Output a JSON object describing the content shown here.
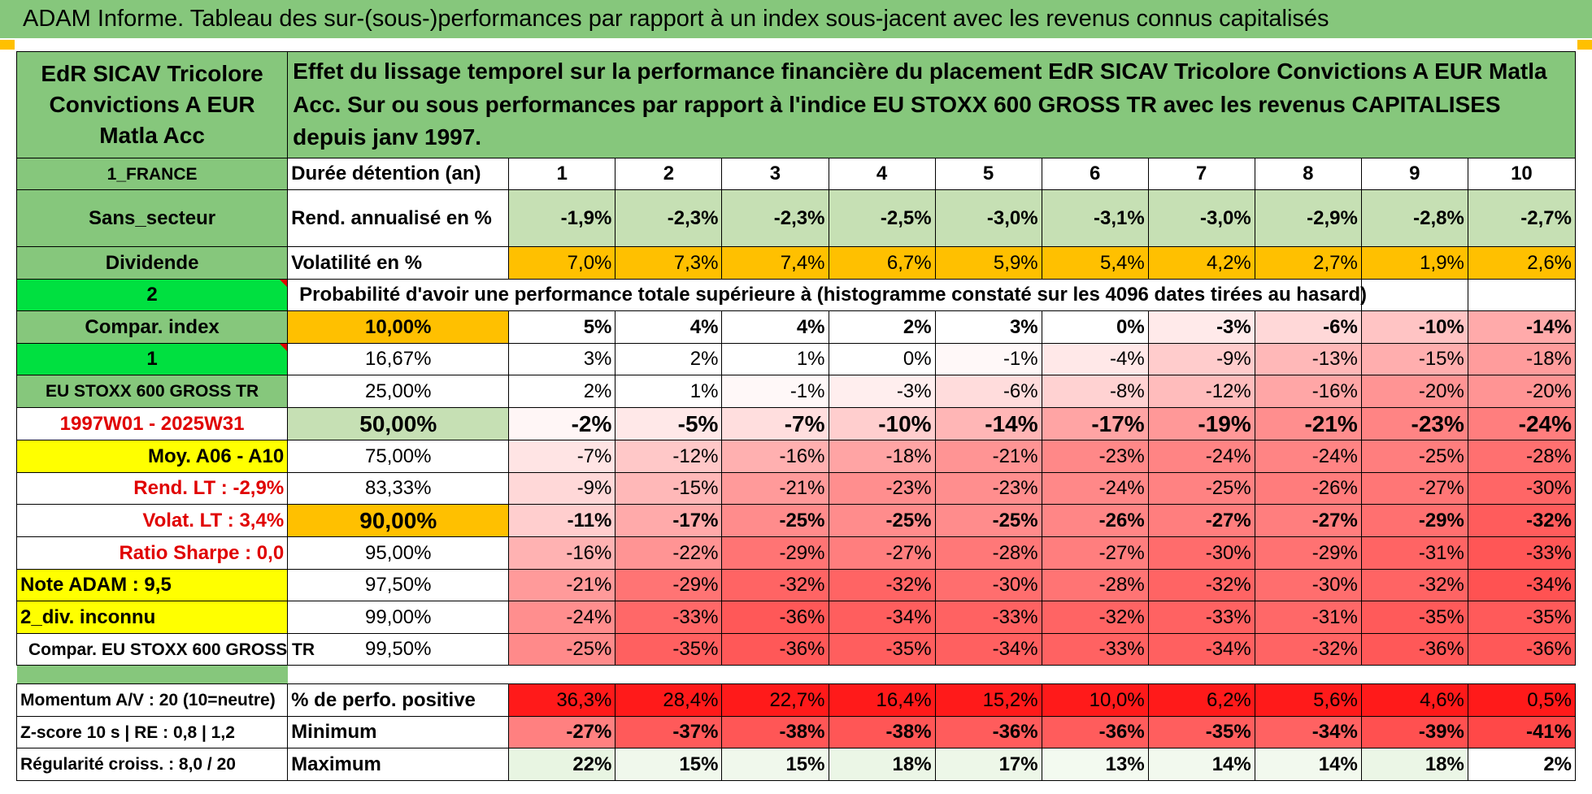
{
  "report_title": "ADAM Informe. Tableau des sur-(sous-)performances par rapport à un index sous-jacent avec les revenus connus capitalisés",
  "fund_name": "EdR SICAV Tricolore Convictions A EUR Matla Acc",
  "description": "Effet du lissage temporel sur la performance financière du placement EdR SICAV Tricolore Convictions A EUR Matla Acc. Sur ou sous performances par rapport à l'indice EU STOXX 600 GROSS TR avec les revenus CAPITALISES depuis janv 1997.",
  "side": {
    "country": "1_FRANCE",
    "sector": "Sans_secteur",
    "dividend": "Dividende",
    "value_2": "2",
    "compar_index": "Compar. index",
    "value_1": "1",
    "index_name": "EU STOXX 600 GROSS TR",
    "period": "1997W01 - 2025W31",
    "moy": "Moy. A06 - A10",
    "rend_lt": "Rend. LT :   -2,9%",
    "volat_lt": "Volat. LT :   3,4%",
    "sharpe": "Ratio Sharpe :   0,0",
    "note": "Note ADAM : 9,5",
    "div_inconnu": "2_div. inconnu",
    "compar_full": "Compar. EU STOXX 600 GROSS TR",
    "momentum": "Momentum A/V : 20 (10=neutre)",
    "zscore": "Z-score 10 s | RE : 0,8 | 1,2",
    "regularite": "Régularité croiss. : 8,0 / 20"
  },
  "headers": {
    "duree": "Durée détention (an)",
    "years": [
      "1",
      "2",
      "3",
      "4",
      "5",
      "6",
      "7",
      "8",
      "9",
      "10"
    ],
    "rend_label": "Rend. annualisé en %",
    "rend": [
      "-1,9%",
      "-2,3%",
      "-2,3%",
      "-2,5%",
      "-3,0%",
      "-3,1%",
      "-3,0%",
      "-2,9%",
      "-2,8%",
      "-2,7%"
    ],
    "vol_label": "Volatilité en %",
    "vol": [
      "7,0%",
      "7,3%",
      "7,4%",
      "6,7%",
      "5,9%",
      "5,4%",
      "4,2%",
      "2,7%",
      "1,9%",
      "2,6%"
    ],
    "proba_label": "Probabilité d'avoir une performance totale supérieure à (histogramme constaté sur les 4096 dates tirées au hasard)"
  },
  "quantiles": [
    {
      "p": "10,00%",
      "values": [
        "5%",
        "4%",
        "4%",
        "2%",
        "3%",
        "0%",
        "-3%",
        "-6%",
        "-10%",
        "-14%"
      ]
    },
    {
      "p": "16,67%",
      "values": [
        "3%",
        "2%",
        "1%",
        "0%",
        "-1%",
        "-4%",
        "-9%",
        "-13%",
        "-15%",
        "-18%"
      ]
    },
    {
      "p": "25,00%",
      "values": [
        "2%",
        "1%",
        "-1%",
        "-3%",
        "-6%",
        "-8%",
        "-12%",
        "-16%",
        "-20%",
        "-20%"
      ]
    },
    {
      "p": "50,00%",
      "values": [
        "-2%",
        "-5%",
        "-7%",
        "-10%",
        "-14%",
        "-17%",
        "-19%",
        "-21%",
        "-23%",
        "-24%"
      ]
    },
    {
      "p": "75,00%",
      "values": [
        "-7%",
        "-12%",
        "-16%",
        "-18%",
        "-21%",
        "-23%",
        "-24%",
        "-24%",
        "-25%",
        "-28%"
      ]
    },
    {
      "p": "83,33%",
      "values": [
        "-9%",
        "-15%",
        "-21%",
        "-23%",
        "-23%",
        "-24%",
        "-25%",
        "-26%",
        "-27%",
        "-30%"
      ]
    },
    {
      "p": "90,00%",
      "values": [
        "-11%",
        "-17%",
        "-25%",
        "-25%",
        "-25%",
        "-26%",
        "-27%",
        "-27%",
        "-29%",
        "-32%"
      ]
    },
    {
      "p": "95,00%",
      "values": [
        "-16%",
        "-22%",
        "-29%",
        "-27%",
        "-28%",
        "-27%",
        "-30%",
        "-29%",
        "-31%",
        "-33%"
      ]
    },
    {
      "p": "97,50%",
      "values": [
        "-21%",
        "-29%",
        "-32%",
        "-32%",
        "-30%",
        "-28%",
        "-32%",
        "-30%",
        "-32%",
        "-34%"
      ]
    },
    {
      "p": "99,00%",
      "values": [
        "-24%",
        "-33%",
        "-36%",
        "-34%",
        "-33%",
        "-32%",
        "-33%",
        "-31%",
        "-35%",
        "-35%"
      ]
    },
    {
      "p": "99,50%",
      "values": [
        "-25%",
        "-35%",
        "-36%",
        "-35%",
        "-34%",
        "-33%",
        "-34%",
        "-32%",
        "-36%",
        "-36%"
      ]
    }
  ],
  "summary": [
    {
      "label": "% de perfo. positive",
      "values": [
        "36,3%",
        "28,4%",
        "22,7%",
        "16,4%",
        "15,2%",
        "10,0%",
        "6,2%",
        "5,6%",
        "4,6%",
        "0,5%"
      ]
    },
    {
      "label": "Minimum",
      "values": [
        "-27%",
        "-37%",
        "-38%",
        "-38%",
        "-36%",
        "-36%",
        "-35%",
        "-34%",
        "-39%",
        "-41%"
      ]
    },
    {
      "label": "Maximum",
      "values": [
        "22%",
        "15%",
        "15%",
        "18%",
        "17%",
        "13%",
        "14%",
        "14%",
        "18%",
        "2%"
      ]
    }
  ],
  "colors": {
    "green": "#86c77c",
    "light_green": "#c6e0b4",
    "bright_green": "#00e040",
    "yellow": "#ffff00",
    "orange": "#ffc000",
    "red_text": "#e00000"
  }
}
